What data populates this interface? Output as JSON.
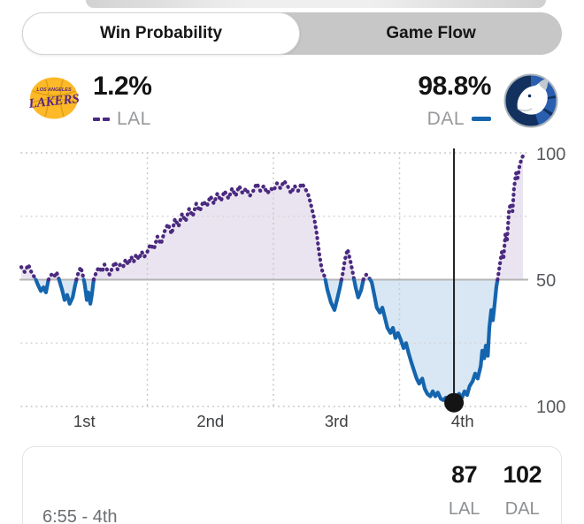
{
  "tabs": {
    "win_probability": "Win Probability",
    "game_flow": "Game Flow"
  },
  "legend": {
    "lal": {
      "pct": "1.2%",
      "abbr": "LAL"
    },
    "dal": {
      "pct": "98.8%",
      "abbr": "DAL"
    }
  },
  "chart_data": {
    "type": "line",
    "title": "Win Probability",
    "x_axis": {
      "labels": [
        "1st",
        "2nd",
        "3rd",
        "4th"
      ],
      "range": [
        0,
        100
      ]
    },
    "y_axis": {
      "top_label": "100",
      "mid_label": "50",
      "bottom_label": "100",
      "description": "LAL win % above midline (dashed purple), DAL win % below (solid blue)"
    },
    "colors": {
      "lal_line": "#4b2a7f",
      "lal_fill": "#eae4f1",
      "dal_line": "#1565ae",
      "dal_fill": "#d9e7f4",
      "grid": "#c9c9c9",
      "mid_line": "#b4b4b4",
      "marker": "#141414"
    },
    "series": [
      {
        "name": "LAL win probability (%)",
        "points": [
          [
            0,
            55
          ],
          [
            0.7,
            53
          ],
          [
            1.4,
            56
          ],
          [
            2.1,
            52.5
          ],
          [
            2.8,
            50.5
          ],
          [
            3.3,
            48
          ],
          [
            3.9,
            45.5
          ],
          [
            4.4,
            47
          ],
          [
            4.9,
            45
          ],
          [
            5.4,
            50
          ],
          [
            6,
            52
          ],
          [
            6.5,
            51
          ],
          [
            7,
            53
          ],
          [
            7.5,
            50
          ],
          [
            8.1,
            46
          ],
          [
            8.6,
            42
          ],
          [
            9.1,
            44
          ],
          [
            9.6,
            40.5
          ],
          [
            10.2,
            43
          ],
          [
            10.7,
            48
          ],
          [
            11.2,
            52
          ],
          [
            11.8,
            55
          ],
          [
            12.3,
            51
          ],
          [
            12.6,
            48
          ],
          [
            13,
            42
          ],
          [
            13.3,
            45
          ],
          [
            13.7,
            40.5
          ],
          [
            14,
            44
          ],
          [
            14.4,
            50.5
          ],
          [
            14.9,
            53
          ],
          [
            15.4,
            55
          ],
          [
            16,
            53
          ],
          [
            16.5,
            56
          ],
          [
            17,
            54
          ],
          [
            17.5,
            52
          ],
          [
            18.1,
            55
          ],
          [
            18.6,
            57
          ],
          [
            19.1,
            54
          ],
          [
            19.6,
            56
          ],
          [
            20.2,
            55
          ],
          [
            20.7,
            58
          ],
          [
            21.2,
            56
          ],
          [
            21.8,
            59
          ],
          [
            22.3,
            57
          ],
          [
            22.8,
            60
          ],
          [
            23.3,
            58
          ],
          [
            23.9,
            61
          ],
          [
            24.4,
            59
          ],
          [
            25,
            61
          ],
          [
            25.6,
            64
          ],
          [
            26.3,
            62
          ],
          [
            27,
            67
          ],
          [
            27.7,
            64
          ],
          [
            28.4,
            69
          ],
          [
            29.1,
            72
          ],
          [
            29.8,
            68
          ],
          [
            30.5,
            74
          ],
          [
            31.2,
            71
          ],
          [
            31.9,
            76
          ],
          [
            32.6,
            73
          ],
          [
            33.3,
            78
          ],
          [
            34,
            75
          ],
          [
            34.7,
            80
          ],
          [
            35.4,
            77
          ],
          [
            36.1,
            81
          ],
          [
            36.8,
            79
          ],
          [
            37.5,
            83
          ],
          [
            38.2,
            80
          ],
          [
            38.9,
            84
          ],
          [
            39.6,
            81
          ],
          [
            40.3,
            85
          ],
          [
            41.1,
            82
          ],
          [
            41.8,
            86
          ],
          [
            42.5,
            83
          ],
          [
            43.2,
            87
          ],
          [
            43.9,
            84
          ],
          [
            44.6,
            86
          ],
          [
            45.3,
            83
          ],
          [
            46,
            85
          ],
          [
            46.7,
            88
          ],
          [
            47.4,
            85
          ],
          [
            48.1,
            87
          ],
          [
            48.8,
            84
          ],
          [
            49.5,
            86
          ],
          [
            50,
            85
          ],
          [
            50.7,
            88
          ],
          [
            51.4,
            86
          ],
          [
            52.1,
            89
          ],
          [
            52.8,
            87
          ],
          [
            53.5,
            84
          ],
          [
            54.2,
            87
          ],
          [
            54.9,
            85
          ],
          [
            55.6,
            88
          ],
          [
            56.3,
            86
          ],
          [
            57,
            83
          ],
          [
            57.5,
            79
          ],
          [
            58.1,
            74
          ],
          [
            58.6,
            68
          ],
          [
            59.1,
            60
          ],
          [
            59.6,
            54
          ],
          [
            60.2,
            51
          ],
          [
            60.7,
            46
          ],
          [
            61.4,
            41
          ],
          [
            62.1,
            38
          ],
          [
            62.6,
            42
          ],
          [
            63.2,
            47
          ],
          [
            63.7,
            52
          ],
          [
            64.2,
            58
          ],
          [
            64.7,
            62
          ],
          [
            65.3,
            57
          ],
          [
            65.8,
            52
          ],
          [
            66.3,
            47
          ],
          [
            66.8,
            43
          ],
          [
            67.4,
            46
          ],
          [
            67.9,
            50.5
          ],
          [
            68.4,
            52
          ],
          [
            68.9,
            51
          ],
          [
            69.5,
            49
          ],
          [
            70,
            44
          ],
          [
            70.5,
            39
          ],
          [
            71.1,
            37
          ],
          [
            71.6,
            39
          ],
          [
            72.1,
            35
          ],
          [
            72.6,
            31
          ],
          [
            73.2,
            29
          ],
          [
            73.7,
            31
          ],
          [
            74.2,
            27
          ],
          [
            74.7,
            29
          ],
          [
            75.3,
            26
          ],
          [
            75.8,
            23
          ],
          [
            76.3,
            25
          ],
          [
            76.8,
            21
          ],
          [
            77.4,
            17
          ],
          [
            77.9,
            14
          ],
          [
            78.4,
            11
          ],
          [
            78.9,
            9
          ],
          [
            79.5,
            11
          ],
          [
            80,
            7
          ],
          [
            80.5,
            5
          ],
          [
            81.1,
            4
          ],
          [
            81.6,
            6
          ],
          [
            82.1,
            4
          ],
          [
            82.6,
            5.5
          ],
          [
            83.2,
            3
          ],
          [
            83.7,
            2.5
          ],
          [
            84.2,
            3.5
          ],
          [
            84.7,
            2
          ],
          [
            85.3,
            2.5
          ],
          [
            85.8,
            1.5
          ],
          [
            86.3,
            3
          ],
          [
            86.8,
            5
          ],
          [
            87.4,
            3.5
          ],
          [
            87.9,
            6
          ],
          [
            88.4,
            4.5
          ],
          [
            88.9,
            8
          ],
          [
            89.5,
            10
          ],
          [
            90,
            13
          ],
          [
            90.5,
            11
          ],
          [
            91.1,
            16
          ],
          [
            91.4,
            22
          ],
          [
            91.8,
            19
          ],
          [
            92.1,
            24
          ],
          [
            92.5,
            20
          ],
          [
            92.8,
            31
          ],
          [
            93.2,
            38
          ],
          [
            93.5,
            34
          ],
          [
            93.9,
            41
          ],
          [
            94.2,
            47
          ],
          [
            94.6,
            52
          ],
          [
            94.9,
            56
          ],
          [
            95.3,
            61
          ],
          [
            95.6,
            58
          ],
          [
            96,
            68
          ],
          [
            96.3,
            65
          ],
          [
            96.7,
            77
          ],
          [
            97,
            80
          ],
          [
            97.4,
            77
          ],
          [
            97.7,
            86
          ],
          [
            98.1,
            92
          ],
          [
            98.4,
            90
          ],
          [
            98.8,
            95
          ],
          [
            99.1,
            97
          ],
          [
            99.5,
            99
          ]
        ]
      }
    ],
    "marker": {
      "t": 85.8,
      "p": 1.5,
      "meaning": "current game moment"
    }
  },
  "footer": {
    "clock": "6:55 - 4th",
    "teams": [
      {
        "abbr": "LAL",
        "score": "87"
      },
      {
        "abbr": "DAL",
        "score": "102"
      }
    ]
  }
}
